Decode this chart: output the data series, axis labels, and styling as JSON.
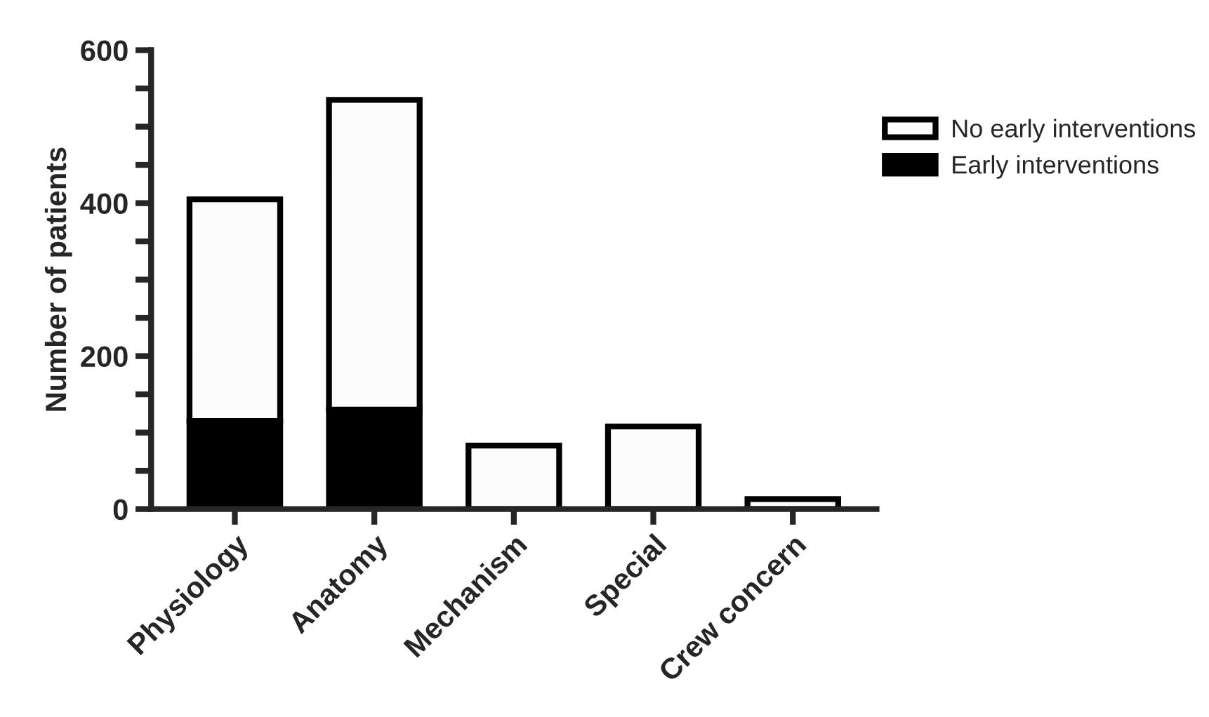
{
  "chart_data": {
    "type": "bar",
    "ylabel": "Number of patients",
    "categories": [
      "Physiology",
      "Anatomy",
      "Mechanism",
      "Special",
      "Crew concern"
    ],
    "stacked": true,
    "series": [
      {
        "name": "Early interventions",
        "color": "#000000",
        "values": [
          115,
          130,
          0,
          0,
          0
        ]
      },
      {
        "name": "No early interventions",
        "color": "#fcfcfc",
        "values": [
          290,
          405,
          83,
          108,
          13
        ]
      }
    ],
    "ylim": [
      0,
      600
    ],
    "yticks": [
      0,
      {
        "value": 50,
        "label": null
      },
      {
        "value": 100,
        "label": null
      },
      {
        "value": 150,
        "label": null
      },
      200,
      {
        "value": 250,
        "label": null
      },
      {
        "value": 300,
        "label": null
      },
      {
        "value": 350,
        "label": null
      },
      400,
      {
        "value": 450,
        "label": null
      },
      {
        "value": 500,
        "label": null
      },
      {
        "value": 550,
        "label": null
      },
      600
    ],
    "legend": "top right",
    "grid": false
  }
}
